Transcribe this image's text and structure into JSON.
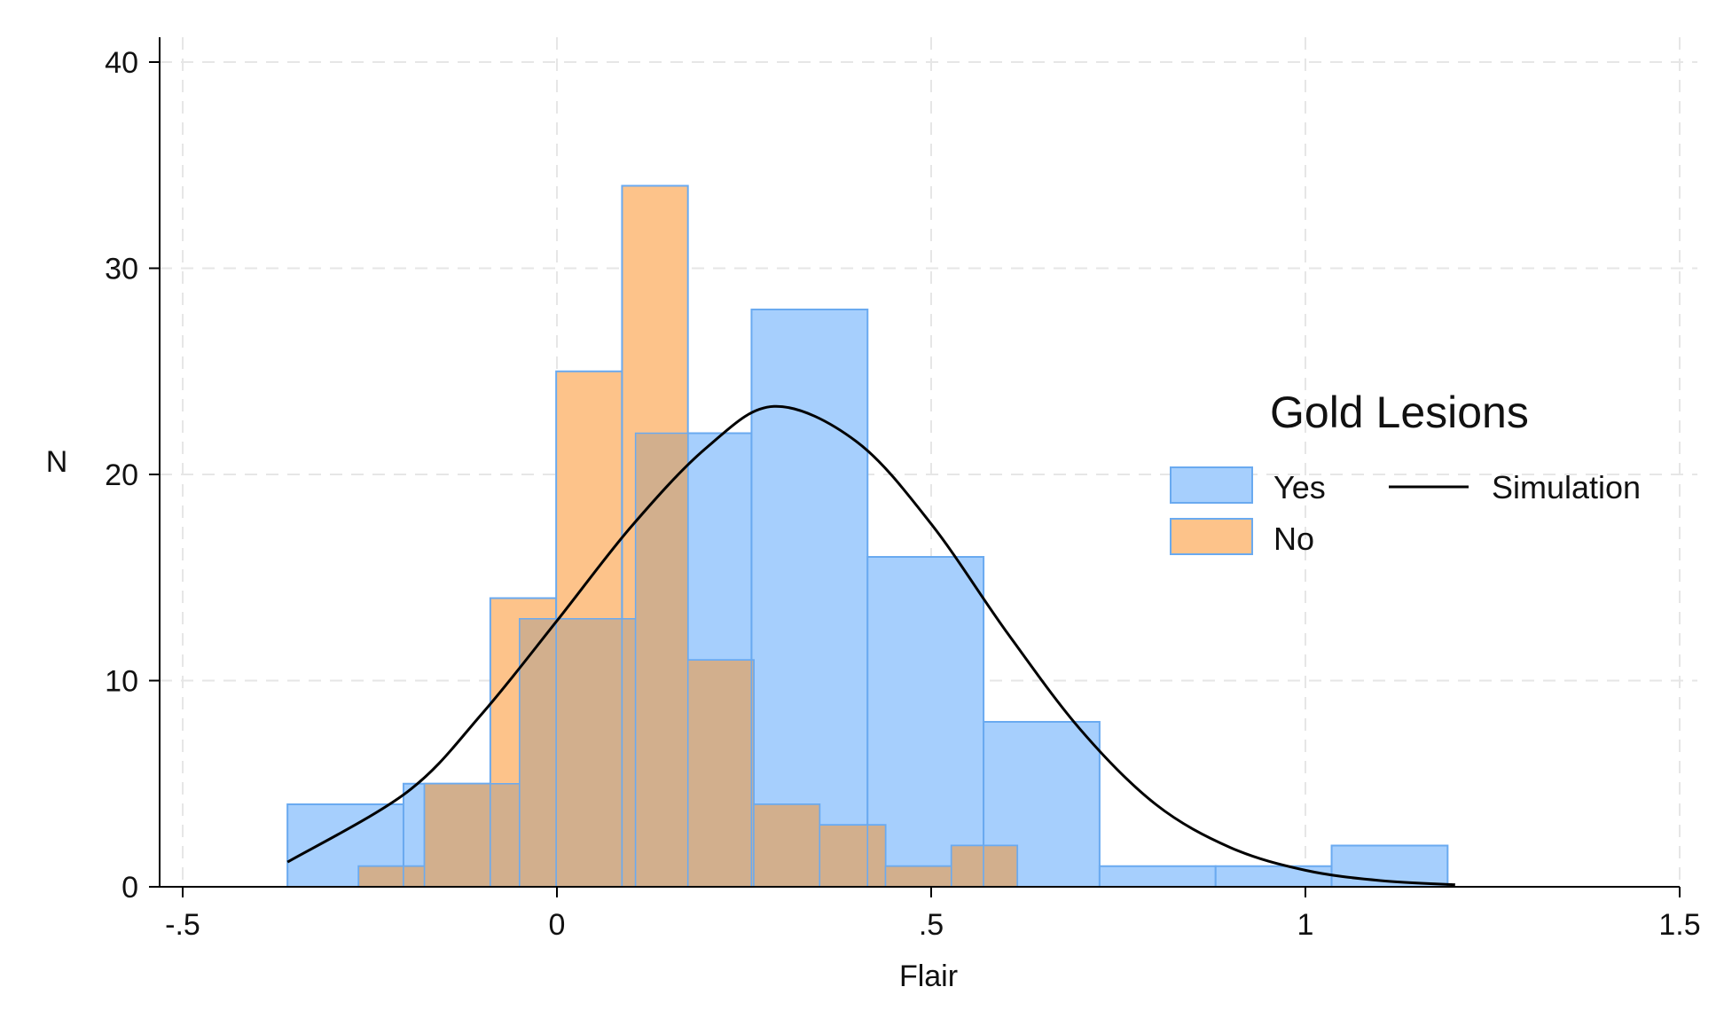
{
  "chart_data": {
    "type": "bar",
    "subtype": "overlaid-histogram-with-density-curve",
    "title": "",
    "xlabel": "Flair",
    "ylabel": "N",
    "xlim": [
      -0.5,
      1.5
    ],
    "ylim": [
      0,
      40
    ],
    "x_ticks": [
      -0.5,
      0,
      0.5,
      1,
      1.5
    ],
    "x_tick_labels": [
      "-.5",
      "0",
      ".5",
      "1",
      "1.5"
    ],
    "y_ticks": [
      0,
      10,
      20,
      30,
      40
    ],
    "y_tick_labels": [
      "0",
      "10",
      "20",
      "30",
      "40"
    ],
    "grid": true,
    "legend": {
      "title": "Gold Lesions",
      "position": "right",
      "entries": [
        "Yes",
        "No",
        "Simulation"
      ]
    },
    "series": [
      {
        "name": "Yes",
        "kind": "histogram",
        "color": "#a6cffd",
        "edge_color": "#6aaaf0",
        "bins": [
          {
            "x0": -0.36,
            "x1": -0.205,
            "value": 4
          },
          {
            "x0": -0.205,
            "x1": -0.05,
            "value": 5
          },
          {
            "x0": -0.05,
            "x1": 0.105,
            "value": 13
          },
          {
            "x0": 0.105,
            "x1": 0.26,
            "value": 22
          },
          {
            "x0": 0.26,
            "x1": 0.415,
            "value": 28
          },
          {
            "x0": 0.415,
            "x1": 0.57,
            "value": 16
          },
          {
            "x0": 0.57,
            "x1": 0.725,
            "value": 8
          },
          {
            "x0": 0.725,
            "x1": 0.88,
            "value": 1
          },
          {
            "x0": 0.88,
            "x1": 1.035,
            "value": 1
          },
          {
            "x0": 1.035,
            "x1": 1.19,
            "value": 2
          }
        ]
      },
      {
        "name": "No",
        "kind": "histogram",
        "color": "#fdc38a",
        "edge_color": "#6aaaf0",
        "bins": [
          {
            "x0": -0.265,
            "x1": -0.177,
            "value": 1
          },
          {
            "x0": -0.177,
            "x1": -0.089,
            "value": 5
          },
          {
            "x0": -0.089,
            "x1": -0.001,
            "value": 14
          },
          {
            "x0": -0.001,
            "x1": 0.087,
            "value": 25
          },
          {
            "x0": 0.087,
            "x1": 0.175,
            "value": 34
          },
          {
            "x0": 0.175,
            "x1": 0.263,
            "value": 11
          },
          {
            "x0": 0.263,
            "x1": 0.351,
            "value": 4
          },
          {
            "x0": 0.351,
            "x1": 0.439,
            "value": 3
          },
          {
            "x0": 0.439,
            "x1": 0.527,
            "value": 1
          },
          {
            "x0": 0.527,
            "x1": 0.615,
            "value": 2
          }
        ]
      },
      {
        "name": "Simulation",
        "kind": "line",
        "color": "#000000",
        "x": [
          -0.36,
          -0.2,
          -0.1,
          0.0,
          0.1,
          0.2,
          0.29,
          0.4,
          0.5,
          0.6,
          0.7,
          0.8,
          0.9,
          1.0,
          1.1,
          1.2
        ],
        "y": [
          1.2,
          4.6,
          8.4,
          12.9,
          17.5,
          21.3,
          23.3,
          21.6,
          17.6,
          12.4,
          7.6,
          4.0,
          1.9,
          0.8,
          0.3,
          0.1
        ]
      }
    ],
    "colors": {
      "yes_fill": "#a6cffd",
      "no_fill": "#fdc38a",
      "overlap_fill": "#d2af8d",
      "bar_edge": "#6aaaf0",
      "curve": "#000000",
      "grid": "#e6e6e6"
    }
  }
}
